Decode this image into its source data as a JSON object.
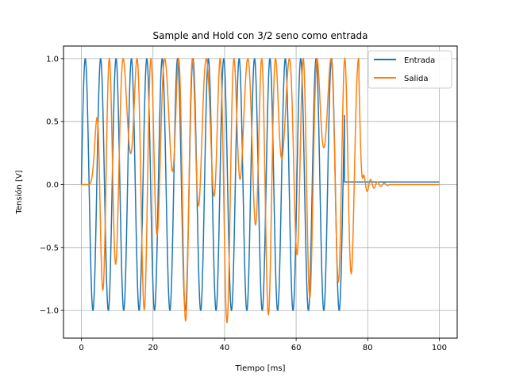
{
  "chart_data": {
    "type": "line",
    "title": "Sample and Hold con 3/2 seno como entrada",
    "xlabel": "Tiempo [ms]",
    "ylabel": "Tensión [V]",
    "xlim": [
      -5,
      105
    ],
    "ylim": [
      -1.22,
      1.1
    ],
    "grid": true,
    "legend_position": "top-right",
    "xticks": [
      0,
      20,
      40,
      60,
      80,
      100
    ],
    "xtick_labels": [
      "0",
      "20",
      "40",
      "60",
      "80",
      "100"
    ],
    "yticks": [
      -1.0,
      -0.5,
      0.0,
      0.5,
      1.0
    ],
    "ytick_labels": [
      "−1.0",
      "−0.5",
      "0.0",
      "0.5",
      "1.0"
    ],
    "series": [
      {
        "name": "Entrada",
        "color": "#1f77b4",
        "model": {
          "kind": "sine-then-hold",
          "amplitude": 1.0,
          "period_ms": 4.3,
          "active_until_ms": 73.5,
          "hold_value": 0.02,
          "hold_until_ms": 100
        }
      },
      {
        "name": "Salida",
        "color": "#ff7f0e",
        "model": {
          "kind": "sampled-oscillation",
          "start_ms": 2.0,
          "rise_ms": 3.0,
          "period_ms": 3.87,
          "upper_envelope": 1.0,
          "lower_min": -1.1,
          "lower_upper_bound": 0.3,
          "modulation_period_ms": 11.0,
          "oscillation_until_ms": 77.5,
          "ring_amplitude": 0.12,
          "ring_decay_ms": 3.0,
          "ring_period_ms": 1.9,
          "ring_until_ms": 86,
          "final_value": 0.0,
          "final_until_ms": 100
        }
      }
    ]
  }
}
